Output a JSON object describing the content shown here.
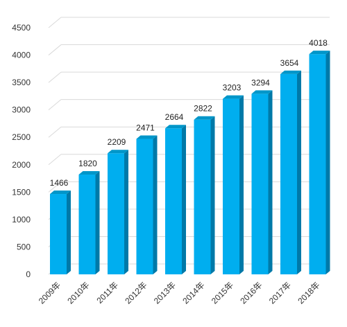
{
  "chart_data": {
    "type": "bar",
    "title": "",
    "xlabel": "",
    "ylabel": "",
    "categories": [
      "2009年",
      "2010年",
      "2011年",
      "2012年",
      "2013年",
      "2014年",
      "2015年",
      "2016年",
      "2017年",
      "2018年"
    ],
    "values": [
      1466,
      1820,
      2209,
      2471,
      2664,
      2822,
      3203,
      3294,
      3654,
      4018
    ],
    "ylim": [
      0,
      4500
    ],
    "yticks": [
      0,
      500,
      1000,
      1500,
      2000,
      2500,
      3000,
      3500,
      4000,
      4500
    ],
    "grid": true,
    "legend": "none",
    "bar_style": "3d-column",
    "colors": {
      "front": "#00aeef",
      "side": "#0079a8",
      "top": "#0096c9",
      "grid": "#d9d9d9"
    }
  }
}
